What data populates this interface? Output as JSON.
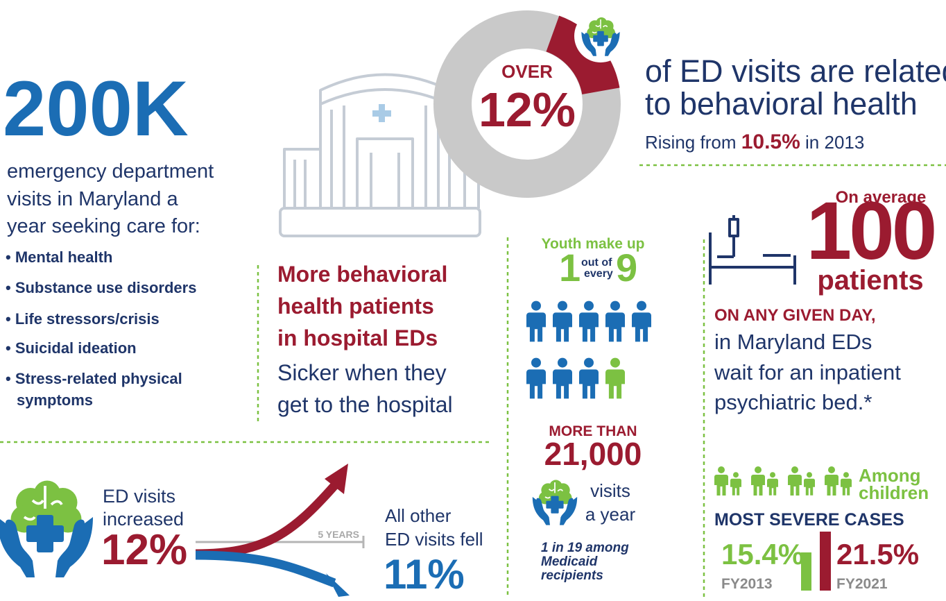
{
  "headline": {
    "value": "200K",
    "lines": [
      "emergency department",
      "visits in Maryland a",
      "year seeking care for:"
    ],
    "bullets": [
      "• Mental health",
      "• Substance use disorders",
      "• Life stressors/crisis",
      "• Suicidal ideation",
      "• Stress-related physical",
      "symptoms"
    ]
  },
  "donut": {
    "prefix": "OVER",
    "value": "12%",
    "text_lines": [
      "of ED visits are related",
      "to behavioral health"
    ],
    "rising": {
      "before": "Rising from",
      "value": "10.5%",
      "after": "in 2013"
    }
  },
  "hospital": {
    "title_lines": [
      "More behavioral",
      "health patients",
      "in hospital EDs"
    ],
    "body_lines": [
      "Sicker when they",
      "get to the hospital"
    ]
  },
  "trend": {
    "label_lines": [
      "ED visits",
      "increased"
    ],
    "value": "12%",
    "period": "5 YEARS",
    "other_lines": [
      "All other",
      "ED visits fell"
    ],
    "other_value": "11%"
  },
  "youth": {
    "intro": "Youth make up",
    "one": "1",
    "out_of": "out of",
    "every": "every",
    "nine": "9",
    "more_than": "MORE THAN",
    "count": "21,000",
    "visits_lines": [
      "visits",
      "a year"
    ],
    "medicaid_lines": [
      "1 in 19 among",
      "Medicaid",
      "recipients"
    ]
  },
  "boarding": {
    "on_average": "On average",
    "number": "100",
    "unit": "patients",
    "emphasis": "ON ANY GIVEN DAY,",
    "lines": [
      "in Maryland EDs",
      "wait for an inpatient",
      "psychiatric bed.*"
    ]
  },
  "children": {
    "label_lines": [
      "Among",
      "children"
    ],
    "heading": "MOST SEVERE CASES",
    "fy2013": {
      "value": "15.4%",
      "label": "FY2013"
    },
    "fy2021": {
      "value": "21.5%",
      "label": "FY2021"
    }
  }
}
